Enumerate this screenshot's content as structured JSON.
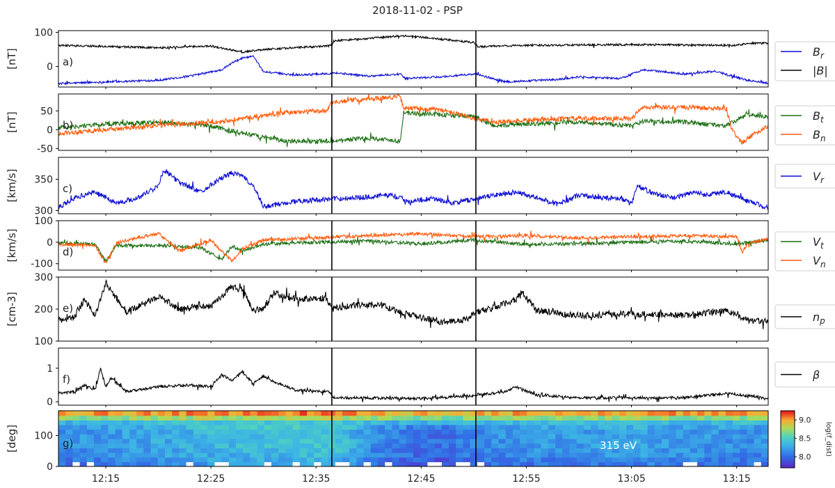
{
  "figure": {
    "title": "2018-11-02 - PSP",
    "x_tick_labels": [
      "12:15",
      "12:25",
      "12:35",
      "12:45",
      "12:55",
      "13:05",
      "13:15"
    ],
    "x_ticks_minutes": [
      735,
      745,
      755,
      765,
      775,
      785,
      795
    ],
    "x_range_minutes": [
      730.5,
      798
    ],
    "vertical_lines_minutes": [
      756.5,
      770.2
    ],
    "vertical_line_color": "#000000"
  },
  "panels": [
    {
      "id": "a",
      "label": "a)",
      "ylabel": "[nT]",
      "yticks": [
        0,
        100
      ],
      "ylim": [
        -60,
        105
      ],
      "legend": [
        {
          "base": "B",
          "sub": "r",
          "color": "#0b0bd2"
        },
        {
          "text": "|B|",
          "color": "#000000"
        }
      ]
    },
    {
      "id": "b",
      "label": "b)",
      "ylabel": "[nT]",
      "yticks": [
        -50,
        0,
        50
      ],
      "ylim": [
        -55,
        95
      ],
      "legend": [
        {
          "base": "B",
          "sub": "t",
          "color": "#1a6e12"
        },
        {
          "base": "B",
          "sub": "n",
          "color": "#ff5a0a"
        }
      ]
    },
    {
      "id": "c",
      "label": "c)",
      "ylabel": "[km/s]",
      "yticks": [
        300,
        350
      ],
      "ylim": [
        295,
        385
      ],
      "legend": [
        {
          "base": "V",
          "sub": "r",
          "color": "#0b0bd2"
        }
      ]
    },
    {
      "id": "d",
      "label": "d)",
      "ylabel": "[km/s]",
      "yticks": [
        -100,
        0,
        100
      ],
      "ylim": [
        -130,
        100
      ],
      "legend": [
        {
          "base": "V",
          "sub": "t",
          "color": "#1a6e12"
        },
        {
          "base": "V",
          "sub": "n",
          "color": "#ff5a0a"
        }
      ]
    },
    {
      "id": "e",
      "label": "e)",
      "ylabel": "[cm-3]",
      "yticks": [
        100,
        200,
        300
      ],
      "ylim": [
        100,
        300
      ],
      "legend": [
        {
          "base": "n",
          "sub": "p",
          "color": "#000000"
        }
      ]
    },
    {
      "id": "f",
      "label": "f)",
      "ylabel": "",
      "yticks": [
        0,
        1
      ],
      "ylim": [
        -0.1,
        1.6
      ],
      "legend": [
        {
          "text": "β",
          "color": "#000000"
        }
      ]
    },
    {
      "id": "g",
      "label": "g)",
      "ylabel": "[deg]",
      "yticks": [
        0,
        100
      ],
      "ylim": [
        0,
        180
      ],
      "annotation": "315 eV",
      "colorbar": {
        "label": "log(f_dist)",
        "ticks": [
          8.0,
          8.5,
          9.0
        ],
        "range": [
          7.7,
          9.25
        ]
      }
    }
  ],
  "chart_data": {
    "type": "line",
    "title": "2018-11-02 - PSP",
    "x_unit": "time (UT, HH:MM)",
    "x_ticks": [
      "12:15",
      "12:25",
      "12:35",
      "12:45",
      "12:55",
      "13:05",
      "13:15"
    ],
    "x_range": [
      "12:10:30",
      "13:18:00"
    ],
    "vertical_markers": [
      "12:36:30",
      "12:50:12"
    ],
    "panels": [
      {
        "label": "a)",
        "ylabel": "[nT]",
        "ylim": [
          -60,
          105
        ],
        "series": [
          {
            "name": "B_r",
            "color": "#0b0bd2",
            "x": [
              "12:10:30",
              "12:15",
              "12:20",
              "12:23",
              "12:26",
              "12:27",
              "12:28",
              "12:29",
              "12:30",
              "12:33",
              "12:36:30",
              "12:36:40",
              "12:40",
              "12:43",
              "12:43:30",
              "12:47",
              "12:50:12",
              "12:53",
              "12:58",
              "13:00",
              "13:04",
              "13:06",
              "13:08",
              "13:10",
              "13:13",
              "13:16",
              "13:18"
            ],
            "y": [
              -50,
              -45,
              -40,
              -28,
              -10,
              10,
              25,
              30,
              -15,
              -25,
              -20,
              -18,
              -28,
              -22,
              -35,
              -30,
              -22,
              -45,
              -38,
              -30,
              -35,
              -10,
              -15,
              -22,
              -14,
              -40,
              -48
            ]
          },
          {
            "name": "|B|",
            "color": "#000000",
            "x": [
              "12:10:30",
              "12:20",
              "12:25",
              "12:28",
              "12:30",
              "12:36",
              "12:36:30",
              "12:36:40",
              "12:40",
              "12:43",
              "12:45",
              "12:50",
              "12:50:12",
              "12:50:20",
              "12:55",
              "13:05",
              "13:15",
              "13:16",
              "13:18"
            ],
            "y": [
              62,
              55,
              60,
              42,
              50,
              60,
              62,
              75,
              82,
              90,
              86,
              70,
              65,
              58,
              62,
              64,
              62,
              68,
              68
            ]
          }
        ]
      },
      {
        "label": "b)",
        "ylabel": "[nT]",
        "ylim": [
          -55,
          95
        ],
        "series": [
          {
            "name": "B_t",
            "color": "#1a6e12",
            "x": [
              "12:10:30",
              "12:15",
              "12:20",
              "12:25",
              "12:28",
              "12:32",
              "12:36:30",
              "12:40",
              "12:43",
              "12:43:20",
              "12:47",
              "12:50",
              "12:52",
              "12:55",
              "13:00",
              "13:05",
              "13:06",
              "13:10",
              "13:14",
              "13:16",
              "13:18"
            ],
            "y": [
              5,
              15,
              20,
              10,
              -10,
              -30,
              -30,
              -22,
              -30,
              45,
              40,
              35,
              10,
              15,
              20,
              10,
              22,
              20,
              10,
              40,
              35
            ]
          },
          {
            "name": "B_n",
            "color": "#ff5a0a",
            "x": [
              "12:10:30",
              "12:15",
              "12:20",
              "12:25",
              "12:28",
              "12:32",
              "12:36",
              "12:36:30",
              "12:38",
              "12:43",
              "12:43:20",
              "12:47",
              "12:50",
              "12:52",
              "12:55",
              "13:00",
              "13:05",
              "13:06",
              "13:10",
              "13:14",
              "13:14:30",
              "13:15:30",
              "13:16:30",
              "13:18"
            ],
            "y": [
              -10,
              0,
              10,
              20,
              30,
              45,
              50,
              72,
              78,
              88,
              58,
              52,
              30,
              20,
              25,
              30,
              30,
              58,
              60,
              55,
              5,
              -35,
              -15,
              10
            ]
          }
        ]
      },
      {
        "label": "c)",
        "ylabel": "[km/s]",
        "ylim": [
          295,
          385
        ],
        "series": [
          {
            "name": "V_r",
            "color": "#0b0bd2",
            "x": [
              "12:10:30",
              "12:12",
              "12:14",
              "12:16",
              "12:18",
              "12:20",
              "12:20:30",
              "12:22",
              "12:24",
              "12:26",
              "12:27",
              "12:28",
              "12:29",
              "12:30",
              "12:33",
              "12:36",
              "12:40",
              "12:42",
              "12:44",
              "12:46",
              "12:48",
              "12:50",
              "12:52",
              "12:54",
              "12:56",
              "12:58",
              "13:00",
              "13:02",
              "13:04",
              "13:05",
              "13:05:30",
              "13:07",
              "13:09",
              "13:11",
              "13:12",
              "13:14",
              "13:16",
              "13:18"
            ],
            "y": [
              305,
              320,
              330,
              312,
              320,
              340,
              365,
              345,
              330,
              352,
              360,
              355,
              340,
              306,
              315,
              318,
              322,
              325,
              315,
              320,
              312,
              318,
              325,
              330,
              320,
              310,
              325,
              320,
              320,
              310,
              340,
              328,
              320,
              330,
              325,
              330,
              315,
              305
            ]
          }
        ]
      },
      {
        "label": "d)",
        "ylabel": "[km/s]",
        "ylim": [
          -130,
          100
        ],
        "series": [
          {
            "name": "V_t",
            "color": "#1a6e12",
            "x": [
              "12:10:30",
              "12:14",
              "12:15",
              "12:16",
              "12:20",
              "12:24",
              "12:26",
              "12:27",
              "12:28",
              "12:30",
              "12:35",
              "12:40",
              "12:45",
              "12:50",
              "12:55",
              "13:00",
              "13:05",
              "13:10",
              "13:15",
              "13:18"
            ],
            "y": [
              -5,
              -10,
              -90,
              -15,
              -15,
              -25,
              -80,
              -20,
              -40,
              -10,
              0,
              5,
              -8,
              10,
              -10,
              -8,
              0,
              5,
              -8,
              10
            ]
          },
          {
            "name": "V_n",
            "color": "#ff5a0a",
            "x": [
              "12:10:30",
              "12:14",
              "12:15",
              "12:16",
              "12:18",
              "12:20",
              "12:22",
              "12:25",
              "12:27",
              "12:28",
              "12:30",
              "12:35",
              "12:40",
              "12:45",
              "12:50",
              "12:55",
              "13:00",
              "13:05",
              "13:10",
              "13:15",
              "13:15:30",
              "13:16",
              "13:18"
            ],
            "y": [
              -10,
              -15,
              -100,
              -5,
              20,
              40,
              -40,
              10,
              -90,
              -30,
              10,
              20,
              30,
              40,
              25,
              30,
              20,
              25,
              30,
              25,
              -50,
              -10,
              15
            ]
          }
        ]
      },
      {
        "label": "e)",
        "ylabel": "[cm-3]",
        "ylim": [
          100,
          300
        ],
        "series": [
          {
            "name": "n_p",
            "color": "#000000",
            "x": [
              "12:10:30",
              "12:12",
              "12:13",
              "12:14",
              "12:15",
              "12:17",
              "12:20",
              "12:22",
              "12:25",
              "12:27",
              "12:28",
              "12:29",
              "12:30",
              "12:31",
              "12:33",
              "12:36",
              "12:36:30",
              "12:38",
              "12:41",
              "12:44",
              "12:47",
              "12:49",
              "12:50:12",
              "12:52",
              "12:54",
              "12:54:30",
              "12:56",
              "13:00",
              "13:05",
              "13:10",
              "13:14",
              "13:16",
              "13:18"
            ],
            "y": [
              165,
              175,
              230,
              180,
              280,
              190,
              240,
              200,
              210,
              270,
              260,
              195,
              205,
              250,
              230,
              235,
              200,
              210,
              215,
              180,
              160,
              165,
              190,
              205,
              230,
              255,
              195,
              180,
              185,
              180,
              195,
              165,
              160
            ]
          }
        ]
      },
      {
        "label": "f)",
        "ylabel": "",
        "ylim": [
          -0.1,
          1.6
        ],
        "series": [
          {
            "name": "β",
            "color": "#000000",
            "x": [
              "12:10:30",
              "12:12",
              "12:13",
              "12:14",
              "12:14:30",
              "12:15",
              "12:15:30",
              "12:17",
              "12:20",
              "12:23",
              "12:25",
              "12:26",
              "12:27",
              "12:28",
              "12:29",
              "12:30",
              "12:31",
              "12:33",
              "12:36:20",
              "12:36:40",
              "12:45",
              "12:50",
              "12:53",
              "12:54",
              "12:56",
              "13:00",
              "13:10",
              "13:14",
              "13:18"
            ],
            "y": [
              0.25,
              0.3,
              0.5,
              0.35,
              1.0,
              0.45,
              0.7,
              0.3,
              0.45,
              0.5,
              0.45,
              0.8,
              0.65,
              0.9,
              0.55,
              0.75,
              0.6,
              0.35,
              0.3,
              0.12,
              0.1,
              0.18,
              0.3,
              0.45,
              0.2,
              0.12,
              0.12,
              0.25,
              0.1
            ]
          }
        ]
      },
      {
        "label": "g)",
        "type": "heatmap",
        "ylabel": "[deg]",
        "ylim": [
          0,
          180
        ],
        "annotation": "315 eV",
        "colorbar_label": "log(f_dist)",
        "colorbar_range": [
          7.7,
          9.25
        ],
        "rows_deg": [
          8,
          22,
          38,
          52,
          68,
          82,
          98,
          112,
          128,
          142,
          158,
          172
        ],
        "row_profile": [
          8.0,
          8.05,
          8.1,
          8.12,
          8.15,
          8.15,
          8.15,
          8.15,
          8.2,
          8.35,
          8.7,
          9.0
        ],
        "time_offset_profile": {
          "12:10:30": 0.0,
          "12:25": 0.2,
          "12:36:30": 0.3,
          "12:40": 0.0,
          "12:47": -0.15,
          "12:50:12": 0.0,
          "13:05": 0.1,
          "13:18": 0.0
        }
      }
    ]
  }
}
